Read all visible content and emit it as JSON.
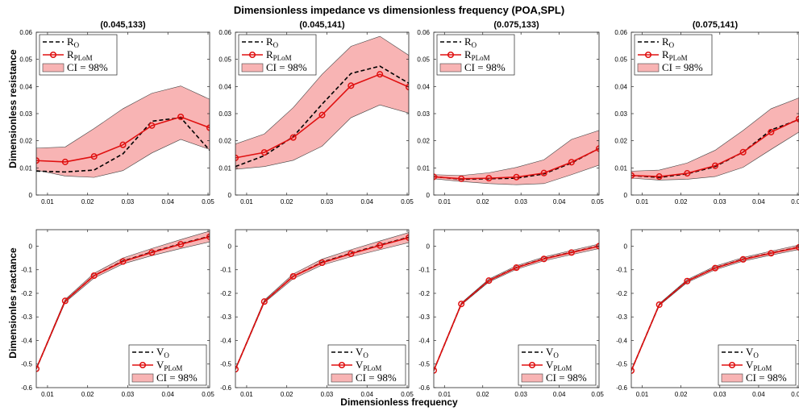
{
  "title": "Dimensionless impedance vs dimensionless frequency (POA,SPL)",
  "xlabel": "Dimensionless frequency",
  "row_ylabels": [
    "Dimensionless resistance",
    "Dimensionles reactance"
  ],
  "colors": {
    "observed": "#000000",
    "plom": "#e01010",
    "ci_fill": "#f8b4b4",
    "ci_edge": "#444444"
  },
  "chart_data": [
    {
      "type": "line",
      "panel": "resistance",
      "title": "(0.045,133)",
      "x": [
        0.0072,
        0.0144,
        0.0216,
        0.0288,
        0.036,
        0.0432,
        0.0504
      ],
      "xlim": [
        0.0072,
        0.0504
      ],
      "xticks": [
        0.01,
        0.02,
        0.03,
        0.04,
        0.05
      ],
      "xtick_labels": [
        "0.01",
        "0.02",
        "0.03",
        "0.04",
        "0.05"
      ],
      "ylim": [
        0,
        0.06
      ],
      "yticks": [
        0,
        0.01,
        0.02,
        0.03,
        0.04,
        0.05,
        0.06
      ],
      "ytick_labels": [
        "0",
        "0.01",
        "0.02",
        "0.03",
        "0.04",
        "0.05",
        "0.06"
      ],
      "series": [
        {
          "name": "R_O",
          "values": [
            0.0088,
            0.0085,
            0.0092,
            0.0152,
            0.0272,
            0.0285,
            0.0165
          ]
        },
        {
          "name": "R_PLoM",
          "values": [
            0.0127,
            0.0122,
            0.0142,
            0.0185,
            0.0256,
            0.0288,
            0.0248
          ]
        }
      ],
      "ci": {
        "name": "CI = 98%",
        "lower": [
          0.0092,
          0.007,
          0.0065,
          0.009,
          0.0155,
          0.0205,
          0.0168
        ],
        "upper": [
          0.0173,
          0.0177,
          0.0245,
          0.0318,
          0.0375,
          0.0402,
          0.0353
        ]
      },
      "legend": {
        "position": "top-left",
        "entries": [
          {
            "main": "R",
            "sub": "O",
            "kind": "dash"
          },
          {
            "main": "R",
            "sub": "PLoM",
            "kind": "marker"
          },
          {
            "main": "CI = 98%",
            "sub": "",
            "kind": "patch"
          }
        ]
      }
    },
    {
      "type": "line",
      "panel": "resistance",
      "title": "(0.045,141)",
      "x": [
        0.0072,
        0.0144,
        0.0216,
        0.0288,
        0.036,
        0.0432,
        0.0504
      ],
      "xlim": [
        0.0072,
        0.0504
      ],
      "xticks": [
        0.01,
        0.02,
        0.03,
        0.04,
        0.05
      ],
      "xtick_labels": [
        "0.01",
        "0.02",
        "0.03",
        "0.04",
        "0.05"
      ],
      "ylim": [
        0,
        0.06
      ],
      "yticks": [
        0,
        0.01,
        0.02,
        0.03,
        0.04,
        0.05,
        0.06
      ],
      "ytick_labels": [
        "0",
        "0.01",
        "0.02",
        "0.03",
        "0.04",
        "0.05",
        "0.06"
      ],
      "series": [
        {
          "name": "R_O",
          "values": [
            0.0105,
            0.0145,
            0.0215,
            0.0335,
            0.0448,
            0.0475,
            0.0412
          ]
        },
        {
          "name": "R_PLoM",
          "values": [
            0.0137,
            0.0157,
            0.0212,
            0.0295,
            0.0403,
            0.0445,
            0.0398
          ]
        }
      ],
      "ci": {
        "name": "CI = 98%",
        "lower": [
          0.0095,
          0.0105,
          0.0128,
          0.018,
          0.0285,
          0.0332,
          0.0302
        ],
        "upper": [
          0.0188,
          0.0225,
          0.0322,
          0.0445,
          0.0548,
          0.0585,
          0.0515
        ]
      },
      "legend": {
        "position": "top-left",
        "entries": [
          {
            "main": "R",
            "sub": "O",
            "kind": "dash"
          },
          {
            "main": "R",
            "sub": "PLoM",
            "kind": "marker"
          },
          {
            "main": "CI = 98%",
            "sub": "",
            "kind": "patch"
          }
        ]
      }
    },
    {
      "type": "line",
      "panel": "resistance",
      "title": "(0.075,133)",
      "x": [
        0.0072,
        0.0144,
        0.0216,
        0.0288,
        0.036,
        0.0432,
        0.0504
      ],
      "xlim": [
        0.0072,
        0.0504
      ],
      "xticks": [
        0.01,
        0.02,
        0.03,
        0.04,
        0.05
      ],
      "xtick_labels": [
        "0.01",
        "0.02",
        "0.03",
        "0.04",
        "0.05"
      ],
      "ylim": [
        0,
        0.06
      ],
      "yticks": [
        0,
        0.01,
        0.02,
        0.03,
        0.04,
        0.05,
        0.06
      ],
      "ytick_labels": [
        "0",
        "0.01",
        "0.02",
        "0.03",
        "0.04",
        "0.05",
        "0.06"
      ],
      "series": [
        {
          "name": "R_O",
          "values": [
            0.0068,
            0.0058,
            0.006,
            0.0062,
            0.0078,
            0.0118,
            0.0172
          ]
        },
        {
          "name": "R_PLoM",
          "values": [
            0.0067,
            0.006,
            0.0062,
            0.0066,
            0.0081,
            0.0121,
            0.0171
          ]
        }
      ],
      "ci": {
        "name": "CI = 98%",
        "lower": [
          0.006,
          0.005,
          0.0042,
          0.0038,
          0.0042,
          0.0075,
          0.011
        ],
        "upper": [
          0.0075,
          0.0072,
          0.0082,
          0.0102,
          0.013,
          0.0205,
          0.0238
        ]
      },
      "legend": {
        "position": "top-left",
        "entries": [
          {
            "main": "R",
            "sub": "O",
            "kind": "dash"
          },
          {
            "main": "R",
            "sub": "PLoM",
            "kind": "marker"
          },
          {
            "main": "CI = 98%",
            "sub": "",
            "kind": "patch"
          }
        ]
      }
    },
    {
      "type": "line",
      "panel": "resistance",
      "title": "(0.075,141)",
      "x": [
        0.0072,
        0.0144,
        0.0216,
        0.0288,
        0.036,
        0.0432,
        0.0504
      ],
      "xlim": [
        0.0072,
        0.0504
      ],
      "xticks": [
        0.01,
        0.02,
        0.03,
        0.04,
        0.05
      ],
      "xtick_labels": [
        "0.01",
        "0.02",
        "0.03",
        "0.04",
        "0.05"
      ],
      "ylim": [
        0,
        0.06
      ],
      "yticks": [
        0,
        0.01,
        0.02,
        0.03,
        0.04,
        0.05,
        0.06
      ],
      "ytick_labels": [
        "0",
        "0.01",
        "0.02",
        "0.03",
        "0.04",
        "0.05",
        "0.06"
      ],
      "series": [
        {
          "name": "R_O",
          "values": [
            0.0072,
            0.0065,
            0.0078,
            0.0105,
            0.0158,
            0.024,
            0.0278
          ]
        },
        {
          "name": "R_PLoM",
          "values": [
            0.0072,
            0.0068,
            0.008,
            0.0108,
            0.0158,
            0.0232,
            0.028
          ]
        }
      ],
      "ci": {
        "name": "CI = 98%",
        "lower": [
          0.0062,
          0.0055,
          0.0058,
          0.0068,
          0.0102,
          0.0168,
          0.0232
        ],
        "upper": [
          0.0088,
          0.0092,
          0.0118,
          0.0165,
          0.0238,
          0.0318,
          0.0358
        ]
      },
      "legend": {
        "position": "top-left",
        "entries": [
          {
            "main": "R",
            "sub": "O",
            "kind": "dash"
          },
          {
            "main": "R",
            "sub": "PLoM",
            "kind": "marker"
          },
          {
            "main": "CI = 98%",
            "sub": "",
            "kind": "patch"
          }
        ]
      }
    },
    {
      "type": "line",
      "panel": "reactance",
      "title": "",
      "x": [
        0.0072,
        0.0144,
        0.0216,
        0.0288,
        0.036,
        0.0432,
        0.0504
      ],
      "xlim": [
        0.0072,
        0.0504
      ],
      "xticks": [
        0.01,
        0.02,
        0.03,
        0.04,
        0.05
      ],
      "xtick_labels": [
        "0.01",
        "0.02",
        "0.03",
        "0.04",
        "0.05"
      ],
      "ylim": [
        -0.6,
        0.07
      ],
      "yticks": [
        -0.6,
        -0.5,
        -0.4,
        -0.3,
        -0.2,
        -0.1,
        0
      ],
      "ytick_labels": [
        "-0.6",
        "-0.5",
        "-0.4",
        "-0.3",
        "-0.2",
        "-0.1",
        "0"
      ],
      "series": [
        {
          "name": "V_O",
          "values": [
            -0.52,
            -0.232,
            -0.125,
            -0.063,
            -0.025,
            0.01,
            0.042
          ]
        },
        {
          "name": "V_PLoM",
          "values": [
            -0.52,
            -0.232,
            -0.125,
            -0.065,
            -0.027,
            0.008,
            0.04
          ]
        }
      ],
      "ci": {
        "name": "CI = 98%",
        "lower": [
          -0.523,
          -0.238,
          -0.135,
          -0.075,
          -0.04,
          -0.01,
          0.018
        ],
        "upper": [
          -0.517,
          -0.226,
          -0.115,
          -0.05,
          -0.01,
          0.028,
          0.064
        ]
      },
      "legend": {
        "position": "bottom-right",
        "entries": [
          {
            "main": "V",
            "sub": "O",
            "kind": "dash"
          },
          {
            "main": "V",
            "sub": "PLoM",
            "kind": "marker"
          },
          {
            "main": "CI = 98%",
            "sub": "",
            "kind": "patch"
          }
        ]
      }
    },
    {
      "type": "line",
      "panel": "reactance",
      "title": "",
      "x": [
        0.0072,
        0.0144,
        0.0216,
        0.0288,
        0.036,
        0.0432,
        0.0504
      ],
      "xlim": [
        0.0072,
        0.0504
      ],
      "xticks": [
        0.01,
        0.02,
        0.03,
        0.04,
        0.05
      ],
      "xtick_labels": [
        "0.01",
        "0.02",
        "0.03",
        "0.04",
        "0.05"
      ],
      "ylim": [
        -0.6,
        0.07
      ],
      "yticks": [
        -0.6,
        -0.5,
        -0.4,
        -0.3,
        -0.2,
        -0.1,
        0
      ],
      "ytick_labels": [
        "-0.6",
        "-0.5",
        "-0.4",
        "-0.3",
        "-0.2",
        "-0.1",
        "0"
      ],
      "series": [
        {
          "name": "V_O",
          "values": [
            -0.522,
            -0.235,
            -0.128,
            -0.068,
            -0.03,
            0.005,
            0.038
          ]
        },
        {
          "name": "V_PLoM",
          "values": [
            -0.522,
            -0.235,
            -0.128,
            -0.07,
            -0.032,
            0.003,
            0.036
          ]
        }
      ],
      "ci": {
        "name": "CI = 98%",
        "lower": [
          -0.525,
          -0.24,
          -0.138,
          -0.08,
          -0.045,
          -0.015,
          0.015
        ],
        "upper": [
          -0.519,
          -0.229,
          -0.118,
          -0.055,
          -0.015,
          0.022,
          0.058
        ]
      },
      "legend": {
        "position": "bottom-right",
        "entries": [
          {
            "main": "V",
            "sub": "O",
            "kind": "dash"
          },
          {
            "main": "V",
            "sub": "PLoM",
            "kind": "marker"
          },
          {
            "main": "CI = 98%",
            "sub": "",
            "kind": "patch"
          }
        ]
      }
    },
    {
      "type": "line",
      "panel": "reactance",
      "title": "",
      "x": [
        0.0072,
        0.0144,
        0.0216,
        0.0288,
        0.036,
        0.0432,
        0.0504
      ],
      "xlim": [
        0.0072,
        0.0504
      ],
      "xticks": [
        0.01,
        0.02,
        0.03,
        0.04,
        0.05
      ],
      "xtick_labels": [
        "0.01",
        "0.02",
        "0.03",
        "0.04",
        "0.05"
      ],
      "ylim": [
        -0.6,
        0.07
      ],
      "yticks": [
        -0.6,
        -0.5,
        -0.4,
        -0.3,
        -0.2,
        -0.1,
        0
      ],
      "ytick_labels": [
        "-0.6",
        "-0.5",
        "-0.4",
        "-0.3",
        "-0.2",
        "-0.1",
        "0"
      ],
      "series": [
        {
          "name": "V_O",
          "values": [
            -0.527,
            -0.245,
            -0.146,
            -0.09,
            -0.053,
            -0.026,
            0.001
          ]
        },
        {
          "name": "V_PLoM",
          "values": [
            -0.527,
            -0.245,
            -0.146,
            -0.091,
            -0.054,
            -0.027,
            0
          ]
        }
      ],
      "ci": {
        "name": "CI = 98%",
        "lower": [
          -0.53,
          -0.249,
          -0.152,
          -0.098,
          -0.062,
          -0.036,
          -0.01
        ],
        "upper": [
          -0.524,
          -0.241,
          -0.14,
          -0.083,
          -0.046,
          -0.018,
          0.009
        ]
      },
      "legend": {
        "position": "bottom-right",
        "entries": [
          {
            "main": "V",
            "sub": "O",
            "kind": "dash"
          },
          {
            "main": "V",
            "sub": "PLoM",
            "kind": "marker"
          },
          {
            "main": "CI = 98%",
            "sub": "",
            "kind": "patch"
          }
        ]
      }
    },
    {
      "type": "line",
      "panel": "reactance",
      "title": "",
      "x": [
        0.0072,
        0.0144,
        0.0216,
        0.0288,
        0.036,
        0.0432,
        0.0504
      ],
      "xlim": [
        0.0072,
        0.0504
      ],
      "xticks": [
        0.01,
        0.02,
        0.03,
        0.04,
        0.05
      ],
      "xtick_labels": [
        "0.01",
        "0.02",
        "0.03",
        "0.04",
        "0.05"
      ],
      "ylim": [
        -0.6,
        0.07
      ],
      "yticks": [
        -0.6,
        -0.5,
        -0.4,
        -0.3,
        -0.2,
        -0.1,
        0
      ],
      "ytick_labels": [
        "-0.6",
        "-0.5",
        "-0.4",
        "-0.3",
        "-0.2",
        "-0.1",
        "0"
      ],
      "series": [
        {
          "name": "V_O",
          "values": [
            -0.528,
            -0.248,
            -0.148,
            -0.092,
            -0.055,
            -0.029,
            -0.004
          ]
        },
        {
          "name": "V_PLoM",
          "values": [
            -0.528,
            -0.248,
            -0.148,
            -0.093,
            -0.056,
            -0.03,
            -0.005
          ]
        }
      ],
      "ci": {
        "name": "CI = 98%",
        "lower": [
          -0.531,
          -0.252,
          -0.154,
          -0.1,
          -0.063,
          -0.038,
          -0.014
        ],
        "upper": [
          -0.525,
          -0.244,
          -0.142,
          -0.085,
          -0.048,
          -0.021,
          0.005
        ]
      },
      "legend": {
        "position": "bottom-right",
        "entries": [
          {
            "main": "V",
            "sub": "O",
            "kind": "dash"
          },
          {
            "main": "V",
            "sub": "PLoM",
            "kind": "marker"
          },
          {
            "main": "CI = 98%",
            "sub": "",
            "kind": "patch"
          }
        ]
      }
    }
  ]
}
